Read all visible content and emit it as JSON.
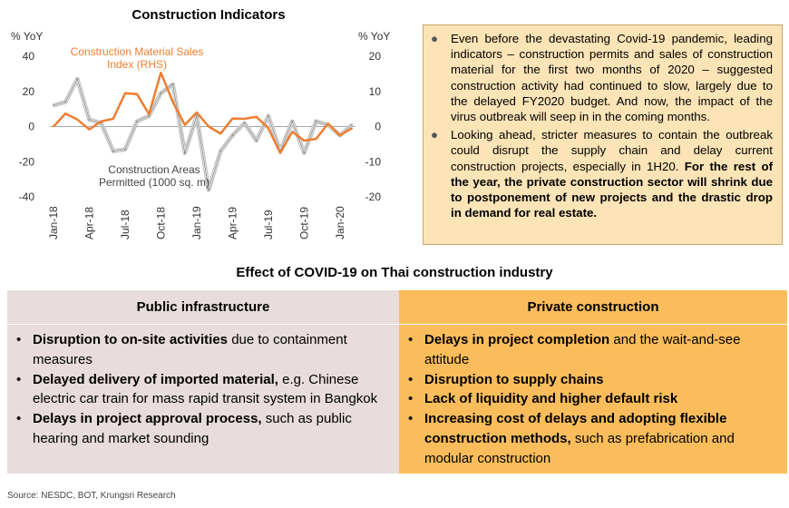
{
  "chart_data": {
    "type": "line",
    "title": "Construction Indicators",
    "left_axis_label": "% YoY",
    "right_axis_label": "% YoY",
    "left_ylim": [
      -40,
      40
    ],
    "right_ylim": [
      -20,
      20
    ],
    "left_ticks": [
      "40",
      "20",
      "0",
      "-20",
      "-40"
    ],
    "right_ticks": [
      "20",
      "10",
      "0",
      "-10",
      "-20"
    ],
    "x": [
      "Jan-18",
      "Feb-18",
      "Mar-18",
      "Apr-18",
      "May-18",
      "Jun-18",
      "Jul-18",
      "Aug-18",
      "Sep-18",
      "Oct-18",
      "Nov-18",
      "Dec-18",
      "Jan-19",
      "Feb-19",
      "Mar-19",
      "Apr-19",
      "May-19",
      "Jun-19",
      "Jul-19",
      "Aug-19",
      "Sep-19",
      "Oct-19",
      "Nov-19",
      "Dec-19",
      "Jan-20",
      "Feb-20"
    ],
    "x_tick_labels": [
      "Jan-18",
      "Apr-18",
      "Jul-18",
      "Oct-18",
      "Jan-19",
      "Apr-19",
      "Jul-19",
      "Oct-19",
      "Jan-20"
    ],
    "x_tick_positions": [
      0,
      3,
      6,
      9,
      12,
      15,
      18,
      21,
      24
    ],
    "series": [
      {
        "name": "Construction Areas Permitted (1000 sq. m)",
        "axis": "left",
        "color": "#7f7f7f",
        "values": [
          12,
          14,
          27,
          4,
          2,
          -14,
          -13,
          3,
          6,
          19,
          24,
          -15,
          6,
          -36,
          -14,
          -5,
          2,
          -8,
          6,
          -14,
          3,
          -15,
          3,
          1,
          -5,
          1
        ]
      },
      {
        "name": "Construction Material Sales Index (RHS)",
        "axis": "right",
        "color": "#ed7d31",
        "values": [
          0,
          3.7,
          2,
          -0.8,
          1.5,
          2.2,
          9.5,
          9.2,
          3.5,
          15.3,
          7,
          0.5,
          4,
          0,
          -2,
          2.3,
          2.2,
          2.8,
          -0.5,
          -7.5,
          -1.5,
          -4,
          -3.5,
          0.8,
          -2.5,
          -0.5
        ]
      }
    ],
    "annotations": {
      "orange_line1": "Construction Material Sales",
      "orange_line2": "Index (RHS)",
      "gray_line1": "Construction Areas",
      "gray_line2": "Permitted (1000 sq. m)"
    }
  },
  "textbox": {
    "p1": "Even before the devastating Covid-19 pandemic, leading indicators – construction permits and sales of construction material for the first two months of 2020 – suggested construction activity had continued to slow, largely due to the delayed FY2020 budget. And now, the impact of the virus outbreak will seep in in the coming months.",
    "p2_normal": "Looking ahead, stricter measures to contain the outbreak could disrupt the supply chain and delay current construction projects, especially in 1H20. ",
    "p2_bold": "For the rest of the year, the private construction sector will shrink due to postponement of new projects and the drastic drop in demand for real estate."
  },
  "section_title": "Effect of COVID-19 on Thai construction industry",
  "table": {
    "left": {
      "header": "Public infrastructure",
      "items": [
        {
          "bold": "Disruption to on-site activities",
          "rest": " due to containment measures"
        },
        {
          "bold": "Delayed delivery of imported material,",
          "rest": " e.g. Chinese electric car train for mass rapid transit system in Bangkok"
        },
        {
          "bold": "Delays in project approval process,",
          "rest": " such as public hearing and market sounding"
        }
      ]
    },
    "right": {
      "header": "Private construction",
      "items": [
        {
          "bold": "Delays in project completion",
          "rest": " and the wait-and-see attitude"
        },
        {
          "bold": "Disruption to supply chains",
          "rest": ""
        },
        {
          "bold": "Lack of liquidity and higher default risk",
          "rest": ""
        },
        {
          "bold": "Increasing cost of delays and adopting flexible construction methods,",
          "rest": " such as  prefabrication and modular construction"
        }
      ]
    }
  },
  "source": "Source: NESDC, BOT, Krungsri Research"
}
